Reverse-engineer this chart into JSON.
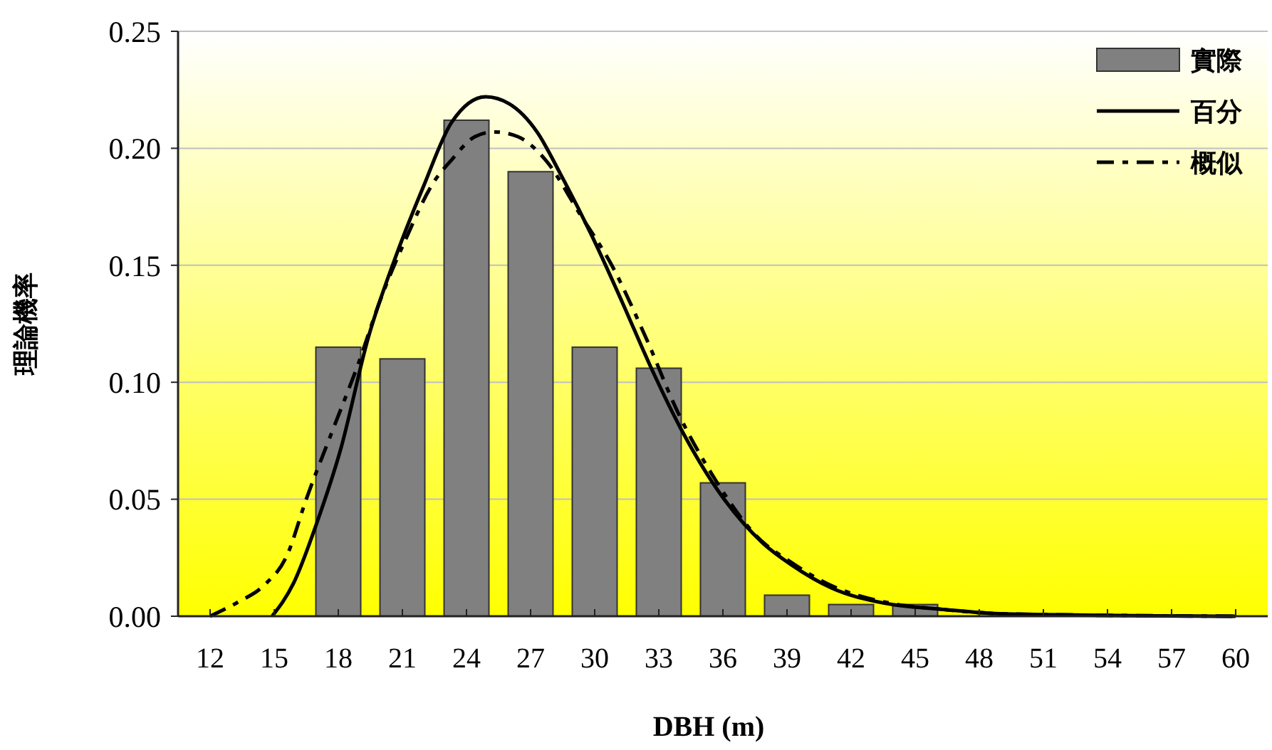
{
  "chart_data": {
    "type": "bar",
    "xlabel": "DBH (m)",
    "ylabel": "理論機率",
    "x": [
      18,
      21,
      24,
      27,
      30,
      33,
      36,
      39,
      42,
      45
    ],
    "xlim": [
      10.5,
      61.5
    ],
    "xticks": [
      12,
      15,
      18,
      21,
      24,
      27,
      30,
      33,
      36,
      39,
      42,
      45,
      48,
      51,
      54,
      57,
      60
    ],
    "ylim": [
      0,
      0.25
    ],
    "yticks": [
      {
        "value": 0,
        "label": "0.00"
      },
      {
        "value": 0.05,
        "label": "0.05"
      },
      {
        "value": 0.1,
        "label": "0.10"
      },
      {
        "value": 0.15,
        "label": "0.15"
      },
      {
        "value": 0.2,
        "label": "0.20"
      },
      {
        "value": 0.25,
        "label": "0.25"
      }
    ],
    "grid": "y",
    "legend": "top right",
    "series": [
      {
        "name": "實際",
        "color": "#808080",
        "values": [
          0.115,
          0.11,
          0.212,
          0.19,
          0.115,
          0.106,
          0.057,
          0.009,
          0.005,
          0.005
        ]
      },
      {
        "name": "百分",
        "type": "line",
        "color": "#000000",
        "line_style": "solid",
        "x": [
          14.9,
          15.9,
          17,
          18.1,
          19.4,
          20.7,
          22,
          23.3,
          24.9,
          26,
          27.3,
          28.4,
          29.9,
          31.3,
          32.6,
          34.1,
          35.9,
          37.9,
          39.2,
          41.1,
          43.6,
          46.2,
          49.2,
          60
        ],
        "values": [
          0,
          0.014,
          0.04,
          0.071,
          0.119,
          0.154,
          0.184,
          0.211,
          0.222,
          0.219,
          0.207,
          0.189,
          0.162,
          0.134,
          0.107,
          0.079,
          0.052,
          0.031,
          0.022,
          0.012,
          0.0055,
          0.003,
          0.001,
          0
        ]
      },
      {
        "name": "概似",
        "type": "line",
        "color": "#000000",
        "line_style": "dashed",
        "x": [
          12,
          13.3,
          14.5,
          15.6,
          16.5,
          17.8,
          18.9,
          20,
          21.1,
          22.5,
          23.3,
          24.4,
          25.3,
          26.4,
          27.7,
          29.3,
          30.8,
          32.4,
          33.9,
          35.6,
          37.6,
          39.2,
          41.1,
          43.6,
          46.2,
          49.2,
          60
        ],
        "values": [
          0,
          0.006,
          0.013,
          0.026,
          0.05,
          0.081,
          0.107,
          0.136,
          0.16,
          0.186,
          0.195,
          0.205,
          0.207,
          0.205,
          0.195,
          0.172,
          0.15,
          0.119,
          0.087,
          0.059,
          0.034,
          0.023,
          0.013,
          0.006,
          0.003,
          0.001,
          0
        ]
      }
    ]
  }
}
